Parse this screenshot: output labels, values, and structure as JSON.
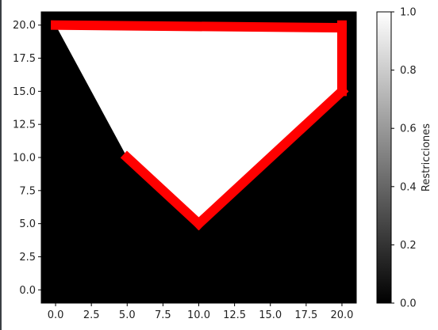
{
  "chart_data": {
    "type": "heatmap",
    "title": "",
    "xlabel": "",
    "ylabel": "",
    "xlim": [
      -1,
      21
    ],
    "ylim": [
      -1,
      21
    ],
    "x_ticks": [
      0.0,
      2.5,
      5.0,
      7.5,
      10.0,
      12.5,
      15.0,
      17.5,
      20.0
    ],
    "x_tick_labels": [
      "0.0",
      "2.5",
      "5.0",
      "7.5",
      "10.0",
      "12.5",
      "15.0",
      "17.5",
      "20.0"
    ],
    "y_ticks": [
      0.0,
      2.5,
      5.0,
      7.5,
      10.0,
      12.5,
      15.0,
      17.5,
      20.0
    ],
    "y_tick_labels": [
      "0.0",
      "2.5",
      "5.0",
      "7.5",
      "10.0",
      "12.5",
      "15.0",
      "17.5",
      "20.0"
    ],
    "feasible_region": [
      [
        0,
        20
      ],
      [
        20,
        20
      ],
      [
        20,
        15
      ],
      [
        10,
        5
      ],
      [
        5,
        10
      ]
    ],
    "constraint_lines": [
      {
        "points": [
          [
            0,
            20
          ],
          [
            20,
            19.8
          ]
        ],
        "color": "#ff0000"
      },
      {
        "points": [
          [
            20,
            20
          ],
          [
            20,
            15
          ]
        ],
        "color": "#ff0000"
      },
      {
        "points": [
          [
            20,
            15
          ],
          [
            10,
            5
          ]
        ],
        "color": "#ff0000"
      },
      {
        "points": [
          [
            10,
            5
          ],
          [
            5,
            10
          ]
        ],
        "color": "#ff0000"
      }
    ],
    "colors": {
      "background": "#000000",
      "feasible": "#ffffff",
      "lines": "#ff0000"
    },
    "colorbar": {
      "label": "Restricciones",
      "range": [
        0.0,
        1.0
      ],
      "ticks": [
        0.0,
        0.2,
        0.4,
        0.6,
        0.8,
        1.0
      ],
      "tick_labels": [
        "0.0",
        "0.2",
        "0.4",
        "0.6",
        "0.8",
        "1.0"
      ],
      "colormap": "gray"
    }
  }
}
